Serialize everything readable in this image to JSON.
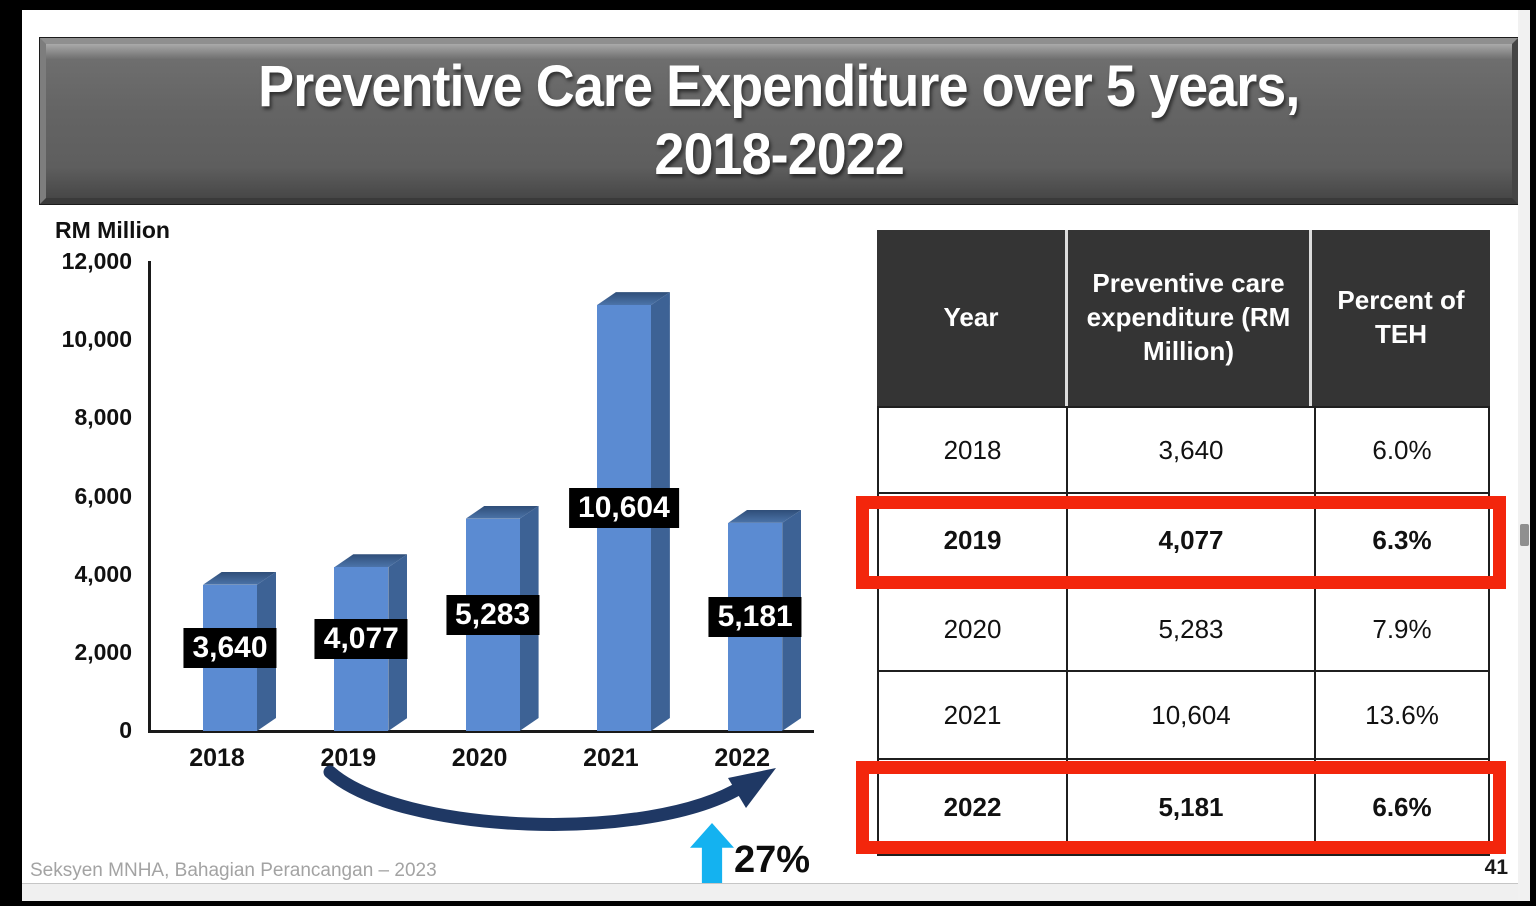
{
  "title": {
    "line1": "Preventive Care Expenditure over 5 years,",
    "line2": "2018-2022"
  },
  "chart_data": {
    "type": "bar",
    "title": "Preventive Care Expenditure over 5 years, 2018-2022",
    "ylabel": "RM Million",
    "xlabel": "",
    "categories": [
      "2018",
      "2019",
      "2020",
      "2021",
      "2022"
    ],
    "values": [
      3640,
      4077,
      5283,
      10604,
      5181
    ],
    "value_labels": [
      "3,640",
      "4,077",
      "5,283",
      "10,604",
      "5,181"
    ],
    "ylim": [
      0,
      12000
    ],
    "ytick_step": 2000,
    "yticks": [
      "12,000",
      "10,000",
      "8,000",
      "6,000",
      "4,000",
      "2,000",
      "0"
    ],
    "grid": false,
    "legend": "none",
    "bar_style": "3d",
    "bar_color": "#5B8BD2",
    "bar_side_color": "#3D6295",
    "bar_top_color": "#2F4E78"
  },
  "annotation": {
    "growth_label": "27%",
    "from_year": "2019",
    "to_year": "2022",
    "up_arrow_icon": "up-arrow",
    "curved_arrow_icon": "curved-growth-arrow"
  },
  "table": {
    "columns": [
      "Year",
      "Preventive care expenditure (RM Million)",
      "Percent of TEH"
    ],
    "rows": [
      {
        "year": "2018",
        "expenditure": "3,640",
        "percent": "6.0%",
        "highlighted": false
      },
      {
        "year": "2019",
        "expenditure": "4,077",
        "percent": "6.3%",
        "highlighted": true
      },
      {
        "year": "2020",
        "expenditure": "5,283",
        "percent": "7.9%",
        "highlighted": false
      },
      {
        "year": "2021",
        "expenditure": "10,604",
        "percent": "13.6%",
        "highlighted": false
      },
      {
        "year": "2022",
        "expenditure": "5,181",
        "percent": "6.6%",
        "highlighted": true
      }
    ]
  },
  "colors": {
    "highlight_red": "#F3260C",
    "arrow_navy": "#1F3864",
    "arrow_cyan": "#14B2F0",
    "table_header_bg": "#343434"
  },
  "footer": {
    "text": "Seksyen MNHA, Bahagian Perancangan – 2023",
    "page_number": "41"
  }
}
